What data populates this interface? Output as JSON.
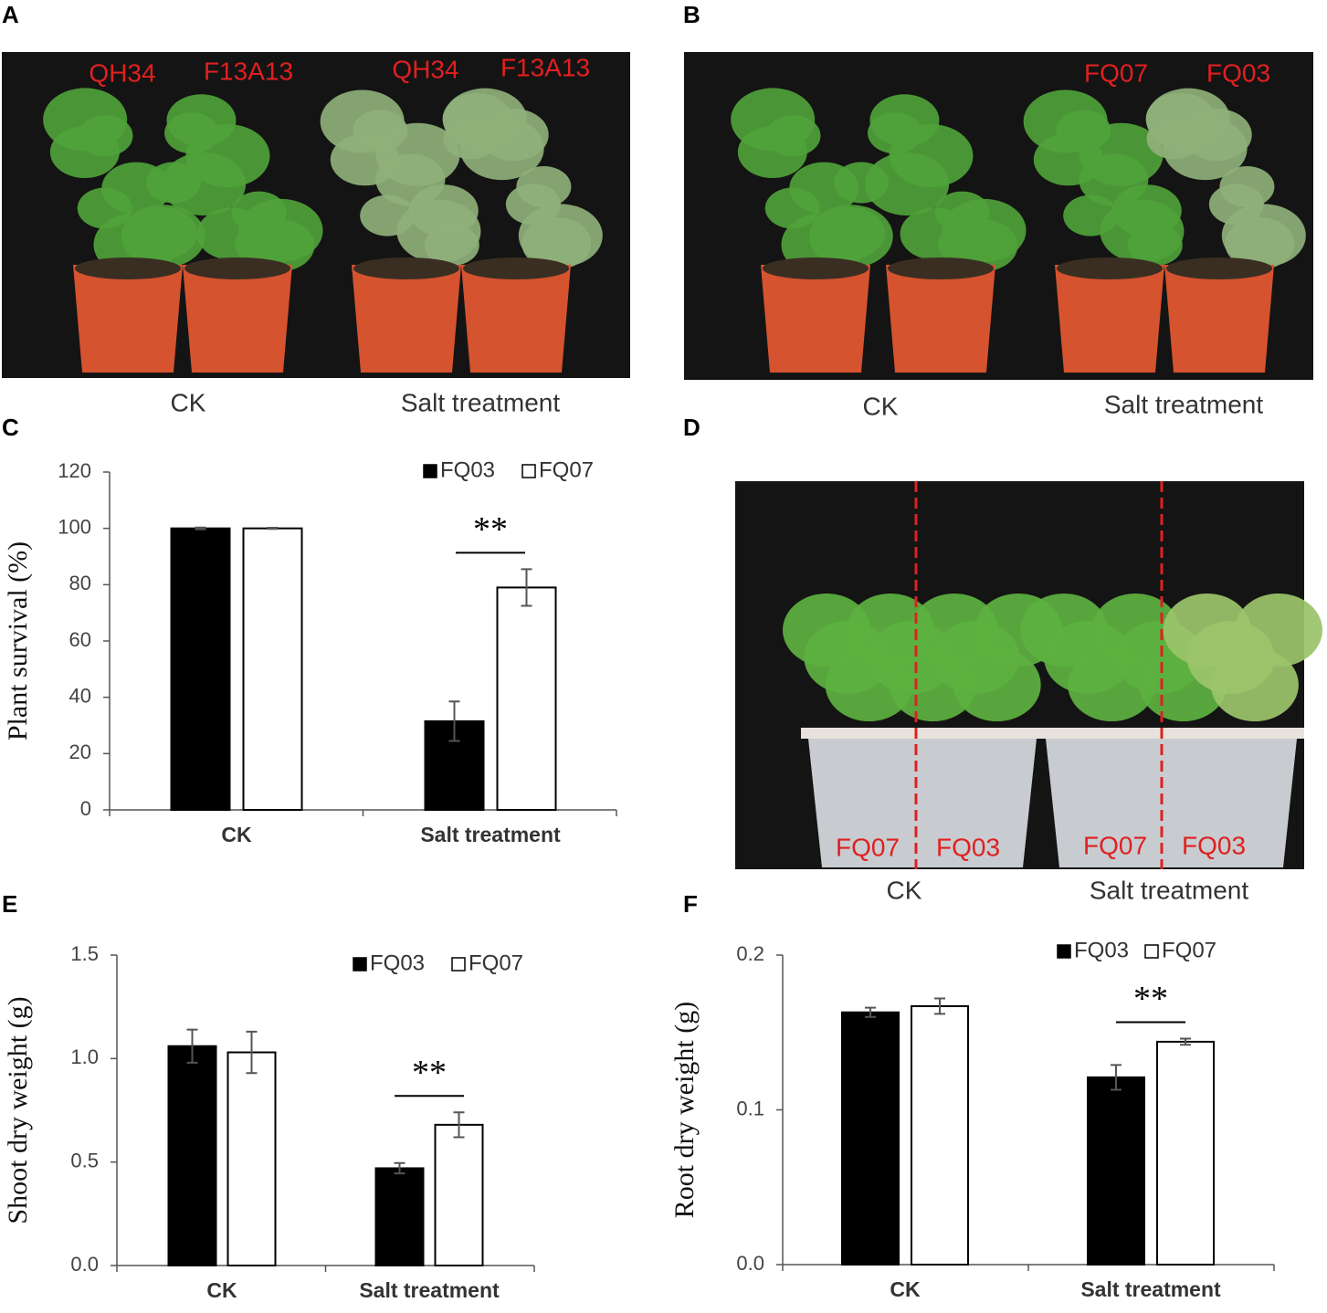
{
  "panel_labels": [
    "A",
    "B",
    "C",
    "D",
    "E",
    "F"
  ],
  "photos": [
    {
      "labels": [
        "QH34",
        "F13A13",
        "QH34",
        "F13A13"
      ],
      "captions": [
        "CK",
        "Salt treatment"
      ]
    },
    {
      "labels": [
        "FQ07",
        "FQ03"
      ],
      "captions": [
        "CK",
        "Salt treatment"
      ]
    },
    {
      "labels": [
        "FQ07",
        "FQ03",
        "FQ07",
        "FQ03"
      ],
      "captions": [
        "CK",
        "Salt treatment"
      ]
    }
  ],
  "chart_data": [
    {
      "type": "bar",
      "y_label": "Plant survival (%)",
      "categories": [
        "CK",
        "Salt treatment"
      ],
      "series": [
        {
          "name": "FQ03",
          "color": "#000000",
          "values": [
            100,
            31.5
          ],
          "errors": [
            0.3,
            7
          ]
        },
        {
          "name": "FQ07",
          "color": "#ffffff",
          "values": [
            100,
            79
          ],
          "errors": [
            0.2,
            6.5
          ]
        }
      ],
      "ylim": [
        0,
        120
      ],
      "yticks": [
        0,
        20,
        40,
        60,
        80,
        100,
        120
      ],
      "significance": "**",
      "legend": "top-right"
    },
    {
      "type": "bar",
      "y_label": "Shoot dry weight (g)",
      "categories": [
        "CK",
        "Salt treatment"
      ],
      "series": [
        {
          "name": "FQ03",
          "color": "#000000",
          "values": [
            1.06,
            0.47
          ],
          "errors": [
            0.08,
            0.025
          ]
        },
        {
          "name": "FQ07",
          "color": "#ffffff",
          "values": [
            1.03,
            0.68
          ],
          "errors": [
            0.1,
            0.06
          ]
        }
      ],
      "ylim": [
        0,
        1.5
      ],
      "yticks": [
        {
          "value": 0,
          "label": "0.0"
        },
        {
          "value": 0.5,
          "label": "0.5"
        },
        {
          "value": 1,
          "label": "1.0"
        },
        {
          "value": 1.5,
          "label": "1.5"
        }
      ],
      "significance": "**",
      "legend": "top-right"
    },
    {
      "type": "bar",
      "y_label": "Root dry weight (g)",
      "categories": [
        "CK",
        "Salt treatment"
      ],
      "series": [
        {
          "name": "FQ03",
          "color": "#000000",
          "values": [
            0.163,
            0.121
          ],
          "errors": [
            0.003,
            0.008
          ]
        },
        {
          "name": "FQ07",
          "color": "#ffffff",
          "values": [
            0.167,
            0.144
          ],
          "errors": [
            0.005,
            0.002
          ]
        }
      ],
      "ylim": [
        0,
        0.2
      ],
      "yticks": [
        {
          "value": 0,
          "label": "0.0"
        },
        0.1,
        0.2
      ],
      "significance": "**",
      "legend": "top-right"
    }
  ]
}
